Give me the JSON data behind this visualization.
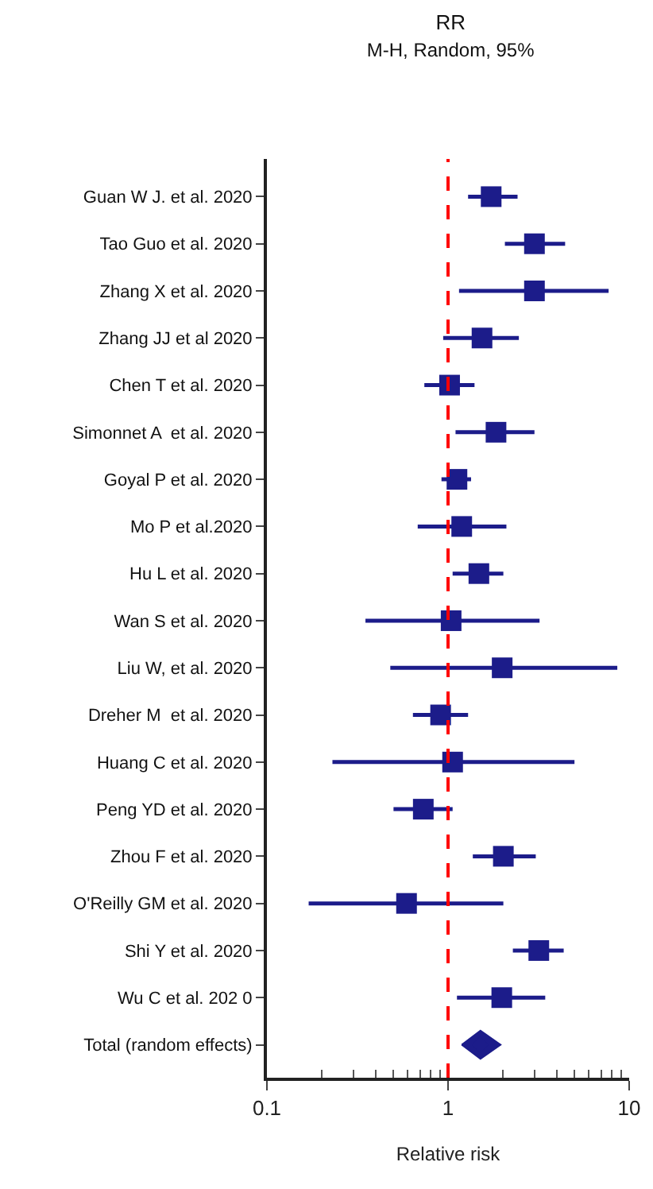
{
  "chart_data": {
    "type": "scatter",
    "title": "RR",
    "subtitle": "M-H, Random, 95%",
    "xlabel": "Relative risk",
    "orientation": "horizontal",
    "log": "x",
    "xlim": [
      0.1,
      10
    ],
    "xticks": [
      0.1,
      1,
      10
    ],
    "categories": [
      "Guan W J. et al. 2020",
      "Tao Guo et al. 2020",
      "Zhang X et al. 2020",
      "Zhang JJ et al 2020",
      "Chen T et al. 2020",
      "Simonnet A  et al. 2020",
      "Goyal P et al. 2020",
      "Mo P et al.2020",
      "Hu L et al. 2020",
      "Wan S et al. 2020",
      "Liu W, et al. 2020",
      "Dreher M  et al. 2020",
      "Huang C et al. 2020",
      "Peng YD et al. 2020",
      "Zhou F et al. 2020",
      "O'Reilly GM et al. 2020",
      "Shi Y et al. 2020",
      "Wu C et al. 202 0",
      "Total (random effects)"
    ],
    "series": [
      {
        "marker": "square",
        "color": "#1c1c8a",
        "values": [
          1.73,
          3.0,
          3.0,
          1.54,
          1.02,
          1.84,
          1.12,
          1.19,
          1.48,
          1.04,
          1.99,
          0.91,
          1.06,
          0.73,
          2.02,
          0.59,
          3.17,
          1.98,
          null
        ],
        "errors": [
          [
            1.29,
            2.42
          ],
          [
            2.06,
            4.43
          ],
          [
            1.15,
            7.7
          ],
          [
            0.94,
            2.46
          ],
          [
            0.74,
            1.4
          ],
          [
            1.1,
            3.0
          ],
          [
            0.92,
            1.34
          ],
          [
            0.68,
            2.1
          ],
          [
            1.06,
            2.02
          ],
          [
            0.35,
            3.2
          ],
          [
            0.48,
            8.6
          ],
          [
            0.64,
            1.29
          ],
          [
            0.23,
            4.99
          ],
          [
            0.5,
            1.06
          ],
          [
            1.37,
            3.05
          ],
          [
            0.17,
            2.02
          ],
          [
            2.28,
            4.35
          ],
          [
            1.12,
            3.44
          ],
          null
        ]
      },
      {
        "marker": "diamond",
        "color": "#1c1c8a",
        "values": [
          null,
          null,
          null,
          null,
          null,
          null,
          null,
          null,
          null,
          null,
          null,
          null,
          null,
          null,
          null,
          null,
          null,
          null,
          1.51
        ],
        "errors": [
          null,
          null,
          null,
          null,
          null,
          null,
          null,
          null,
          null,
          null,
          null,
          null,
          null,
          null,
          null,
          null,
          null,
          null,
          [
            1.19,
            1.95
          ]
        ]
      }
    ],
    "ref_lines": [
      {
        "axis": "x",
        "value": 1,
        "color": "#ff0000",
        "line_style": "dashed"
      }
    ]
  }
}
